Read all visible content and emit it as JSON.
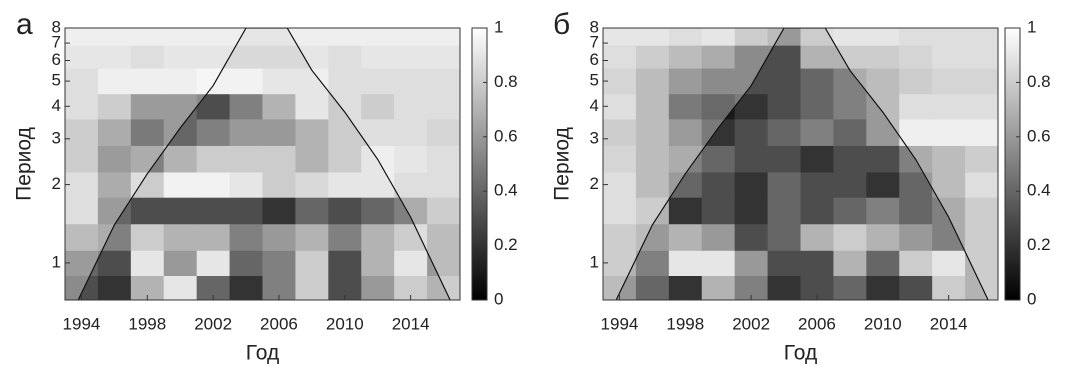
{
  "chart_data": [
    {
      "type": "heatmap",
      "panel": "а",
      "xlabel": "Год",
      "ylabel": "Период",
      "x": [
        1994,
        1996,
        1998,
        2000,
        2002,
        2004,
        2006,
        2008,
        2010,
        2012,
        2014,
        2016
      ],
      "y": [
        0.8,
        1,
        1.25,
        1.6,
        2,
        2.5,
        3.2,
        4,
        5,
        6.3,
        7.5
      ],
      "z": [
        [
          0.3,
          0.2,
          0.7,
          0.9,
          0.4,
          0.2,
          0.5,
          0.8,
          0.3,
          0.6,
          0.8,
          0.7
        ],
        [
          0.4,
          0.3,
          0.9,
          0.6,
          0.9,
          0.4,
          0.5,
          0.8,
          0.3,
          0.7,
          0.9,
          0.6
        ],
        [
          0.6,
          0.5,
          0.8,
          0.7,
          0.7,
          0.5,
          0.6,
          0.7,
          0.5,
          0.7,
          0.8,
          0.6
        ],
        [
          0.8,
          0.4,
          0.3,
          0.3,
          0.3,
          0.3,
          0.2,
          0.4,
          0.3,
          0.4,
          0.5,
          0.7
        ],
        [
          0.8,
          0.5,
          0.8,
          0.95,
          0.95,
          0.9,
          0.8,
          0.85,
          0.9,
          0.9,
          0.8,
          0.8
        ],
        [
          0.7,
          0.4,
          0.5,
          0.7,
          0.8,
          0.8,
          0.8,
          0.7,
          0.8,
          0.9,
          0.85,
          0.8
        ],
        [
          0.7,
          0.5,
          0.2,
          0.4,
          0.5,
          0.6,
          0.6,
          0.7,
          0.8,
          0.8,
          0.8,
          0.75
        ],
        [
          0.8,
          0.7,
          0.4,
          0.4,
          0.3,
          0.5,
          0.7,
          0.9,
          0.8,
          0.7,
          0.8,
          0.8
        ],
        [
          0.8,
          0.9,
          0.9,
          0.9,
          0.95,
          0.95,
          0.9,
          0.9,
          0.8,
          0.8,
          0.8,
          0.8
        ],
        [
          0.85,
          0.85,
          0.8,
          0.85,
          0.85,
          0.85,
          0.85,
          0.85,
          0.8,
          0.85,
          0.85,
          0.85
        ],
        [
          0.9,
          0.9,
          0.9,
          0.9,
          0.9,
          0.9,
          0.9,
          0.9,
          0.9,
          0.9,
          0.9,
          0.9
        ]
      ],
      "coi": {
        "x": [
          1993.8,
          1996,
          1998,
          2000,
          2002,
          2004,
          2006.5,
          2008,
          2010,
          2012,
          2014,
          2016.4
        ],
        "y": [
          0.72,
          1.4,
          2.2,
          3.3,
          4.8,
          8,
          8,
          5.5,
          3.8,
          2.5,
          1.5,
          0.72
        ]
      },
      "xlim": [
        1993,
        2017
      ],
      "ylim": [
        0.72,
        8
      ],
      "log_y": true,
      "xticks": [
        1994,
        1998,
        2002,
        2006,
        2010,
        2014
      ],
      "yticks": [
        1,
        2,
        3,
        4,
        5,
        6,
        7,
        8
      ],
      "clim": [
        0,
        1
      ],
      "cticks": [
        0,
        0.2,
        0.4,
        0.6,
        0.8,
        1
      ],
      "colormap": "gray"
    },
    {
      "type": "heatmap",
      "panel": "б",
      "xlabel": "Год",
      "ylabel": "Период",
      "x": [
        1994,
        1996,
        1998,
        2000,
        2002,
        2004,
        2006,
        2008,
        2010,
        2012,
        2014,
        2016
      ],
      "y": [
        0.8,
        1,
        1.25,
        1.6,
        2,
        2.5,
        3.2,
        4,
        5,
        6.3,
        7.5
      ],
      "z": [
        [
          0.6,
          0.4,
          0.2,
          0.7,
          0.5,
          0.2,
          0.3,
          0.4,
          0.2,
          0.3,
          0.8,
          0.7
        ],
        [
          0.7,
          0.5,
          0.9,
          0.9,
          0.6,
          0.3,
          0.3,
          0.7,
          0.4,
          0.8,
          0.9,
          0.7
        ],
        [
          0.7,
          0.6,
          0.7,
          0.6,
          0.3,
          0.4,
          0.7,
          0.8,
          0.7,
          0.6,
          0.5,
          0.7
        ],
        [
          0.8,
          0.7,
          0.2,
          0.3,
          0.2,
          0.4,
          0.3,
          0.4,
          0.5,
          0.4,
          0.5,
          0.7
        ],
        [
          0.8,
          0.6,
          0.4,
          0.3,
          0.2,
          0.4,
          0.3,
          0.3,
          0.2,
          0.4,
          0.6,
          0.8
        ],
        [
          0.75,
          0.6,
          0.5,
          0.4,
          0.3,
          0.3,
          0.2,
          0.3,
          0.3,
          0.5,
          0.6,
          0.7
        ],
        [
          0.7,
          0.6,
          0.4,
          0.2,
          0.3,
          0.4,
          0.5,
          0.4,
          0.6,
          0.9,
          0.9,
          0.9
        ],
        [
          0.8,
          0.6,
          0.2,
          0.1,
          0.2,
          0.3,
          0.4,
          0.5,
          0.6,
          0.8,
          0.8,
          0.8
        ],
        [
          0.75,
          0.6,
          0.4,
          0.3,
          0.3,
          0.3,
          0.4,
          0.5,
          0.6,
          0.7,
          0.75,
          0.75
        ],
        [
          0.8,
          0.7,
          0.6,
          0.5,
          0.3,
          0.3,
          0.7,
          0.7,
          0.7,
          0.75,
          0.8,
          0.8
        ],
        [
          0.85,
          0.85,
          0.8,
          0.85,
          0.7,
          0.6,
          0.8,
          0.85,
          0.85,
          0.8,
          0.8,
          0.8
        ]
      ],
      "coi": {
        "x": [
          1993.8,
          1996,
          1998,
          2000,
          2002,
          2004,
          2006.5,
          2008,
          2010,
          2012,
          2014,
          2016.4
        ],
        "y": [
          0.72,
          1.4,
          2.2,
          3.3,
          4.8,
          8,
          8,
          5.5,
          3.8,
          2.5,
          1.5,
          0.72
        ]
      },
      "xlim": [
        1993,
        2017
      ],
      "ylim": [
        0.72,
        8
      ],
      "log_y": true,
      "xticks": [
        1994,
        1998,
        2002,
        2006,
        2010,
        2014
      ],
      "yticks": [
        1,
        2,
        3,
        4,
        5,
        6,
        7,
        8
      ],
      "clim": [
        0,
        1
      ],
      "cticks": [
        0,
        0.2,
        0.4,
        0.6,
        0.8,
        1
      ],
      "colormap": "gray"
    }
  ]
}
